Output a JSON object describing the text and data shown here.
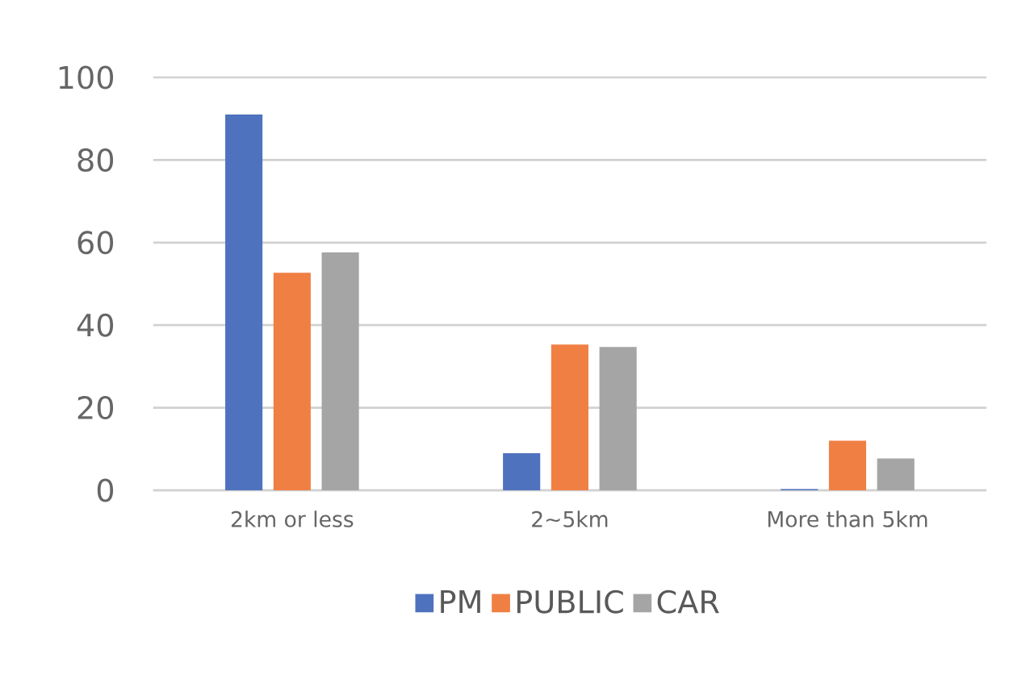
{
  "chart_data": {
    "type": "bar",
    "categories": [
      "2km or less",
      "2~5km",
      "More than 5km"
    ],
    "series": [
      {
        "name": "PM",
        "color": "#4f72be",
        "values": [
          91,
          9,
          0.3
        ]
      },
      {
        "name": "PUBLIC",
        "color": "#f07f44",
        "values": [
          52.7,
          35.3,
          12
        ]
      },
      {
        "name": "CAR",
        "color": "#a5a5a5",
        "values": [
          57.6,
          34.7,
          7.7
        ]
      }
    ],
    "ylim": [
      0,
      100
    ],
    "yticks": [
      0,
      20,
      40,
      60,
      80,
      100
    ],
    "grid": "y",
    "legend": "bottom"
  }
}
